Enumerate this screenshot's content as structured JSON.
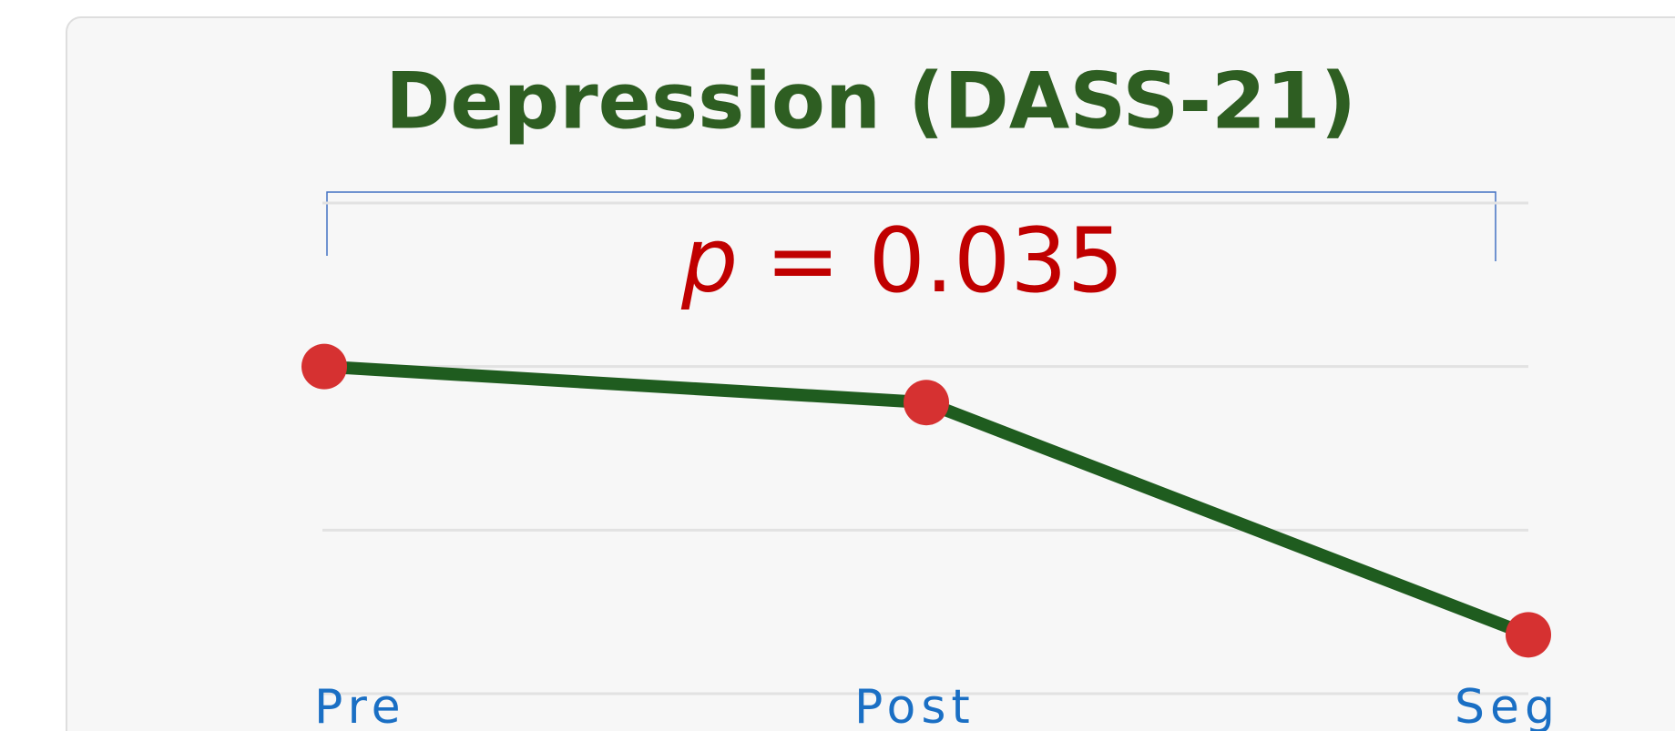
{
  "chart_data": {
    "type": "line",
    "title": "Depression (DASS-21)",
    "annotation": {
      "symbol": "p",
      "text": "= 0.035"
    },
    "categories": [
      "Pre",
      "Post",
      "Seg"
    ],
    "series": [
      {
        "color": "#1f5c1f",
        "marker_color": "#d63131",
        "values": [
          2,
          1.78,
          0.36
        ]
      }
    ],
    "ylim": [
      0,
      3
    ],
    "yticks": [
      0,
      1,
      2,
      3
    ],
    "grid": true
  }
}
